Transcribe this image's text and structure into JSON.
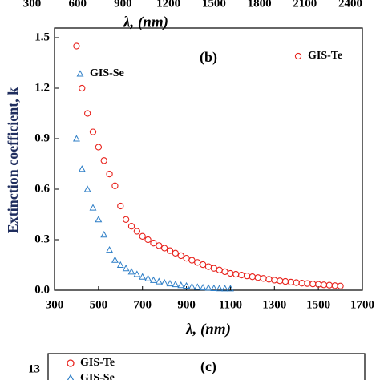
{
  "chart_data": {
    "type": "scatter",
    "label": "(b)",
    "xlabel": "λ, (nm)",
    "ylabel": "Extinction coefficient, k",
    "xlim": [
      300,
      1700
    ],
    "xticks": [
      300,
      500,
      700,
      900,
      1100,
      1300,
      1500,
      1700
    ],
    "ylim": [
      0,
      1.5
    ],
    "yticks": [
      {
        "value": 0,
        "label": "0.0"
      },
      0.3,
      0.6,
      0.9,
      1.2,
      1.5
    ],
    "series": [
      {
        "name": "GIS-Te",
        "color": "#e8221c",
        "marker": "circle",
        "x": [
          400,
          425,
          450,
          475,
          500,
          525,
          550,
          575,
          600,
          625,
          650,
          675,
          700,
          725,
          750,
          775,
          800,
          825,
          850,
          875,
          900,
          925,
          950,
          975,
          1000,
          1025,
          1050,
          1075,
          1100,
          1125,
          1150,
          1175,
          1200,
          1225,
          1250,
          1275,
          1300,
          1325,
          1350,
          1375,
          1400,
          1425,
          1450,
          1475,
          1500,
          1525,
          1550,
          1575,
          1600
        ],
        "values": [
          1.45,
          1.2,
          1.05,
          0.94,
          0.85,
          0.77,
          0.69,
          0.62,
          0.5,
          0.42,
          0.38,
          0.35,
          0.32,
          0.3,
          0.28,
          0.265,
          0.25,
          0.235,
          0.22,
          0.205,
          0.19,
          0.178,
          0.165,
          0.152,
          0.14,
          0.13,
          0.12,
          0.11,
          0.1,
          0.095,
          0.09,
          0.085,
          0.08,
          0.075,
          0.07,
          0.065,
          0.06,
          0.056,
          0.052,
          0.048,
          0.045,
          0.042,
          0.04,
          0.037,
          0.035,
          0.032,
          0.03,
          0.027,
          0.025
        ]
      },
      {
        "name": "GIS-Se",
        "color": "#2f7fc7",
        "marker": "triangle",
        "x": [
          400,
          425,
          450,
          475,
          500,
          525,
          550,
          575,
          600,
          625,
          650,
          675,
          700,
          725,
          750,
          775,
          800,
          825,
          850,
          875,
          900,
          925,
          950,
          975,
          1000,
          1025,
          1050,
          1075,
          1100
        ],
        "values": [
          0.9,
          0.72,
          0.6,
          0.49,
          0.42,
          0.33,
          0.24,
          0.18,
          0.15,
          0.13,
          0.11,
          0.095,
          0.08,
          0.07,
          0.06,
          0.052,
          0.045,
          0.04,
          0.035,
          0.03,
          0.026,
          0.022,
          0.019,
          0.016,
          0.014,
          0.012,
          0.011,
          0.01,
          0.01
        ]
      }
    ]
  },
  "top_fragment": {
    "xlabel": "λ, (nm)",
    "xlim": [
      300,
      2400
    ],
    "xticks": [
      300,
      600,
      900,
      1200,
      1500,
      1800,
      2100,
      2400
    ]
  },
  "bottom_fragment": {
    "label": "(c)",
    "legend": [
      "GIS-Te",
      "GIS-Se"
    ],
    "yticks": [
      13
    ]
  }
}
